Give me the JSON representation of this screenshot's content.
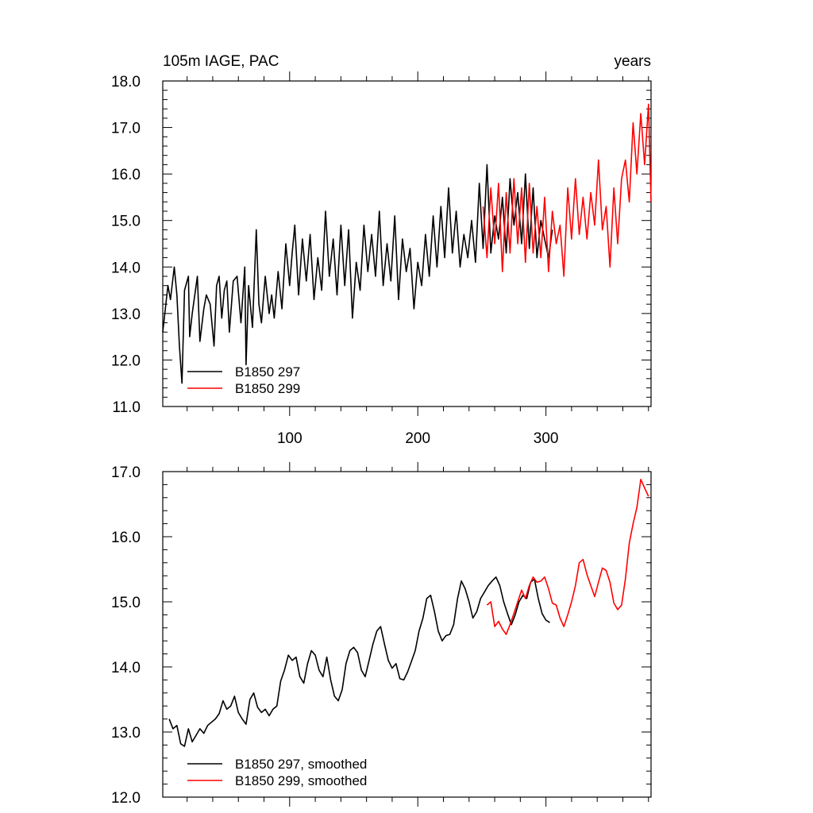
{
  "chart_data": [
    {
      "type": "line",
      "title_left": "105m IAGE, PAC",
      "title_right": "years",
      "xlabel": "",
      "ylabel": "",
      "xlim": [
        1,
        382
      ],
      "ylim": [
        11.0,
        18.0
      ],
      "x_ticks": [
        100,
        200,
        300
      ],
      "x_tick_labels": [
        "100",
        "200",
        "300"
      ],
      "y_ticks": [
        11.0,
        12.0,
        13.0,
        14.0,
        15.0,
        16.0,
        17.0,
        18.0
      ],
      "y_tick_labels": [
        "11.0",
        "12.0",
        "13.0",
        "14.0",
        "15.0",
        "16.0",
        "17.0",
        "18.0"
      ],
      "legend_position": "bottom-left",
      "series": [
        {
          "name": "B1850 297",
          "color": "#000000",
          "x": [
            1,
            5,
            7,
            10,
            12,
            14,
            16,
            18,
            21,
            22,
            24,
            28,
            30,
            33,
            35,
            38,
            41,
            43,
            45,
            47,
            49,
            51,
            53,
            56,
            59,
            62,
            65,
            66,
            68,
            71,
            74,
            76,
            78,
            81,
            84,
            86,
            88,
            91,
            94,
            97,
            100,
            102,
            104,
            107,
            110,
            113,
            116,
            119,
            122,
            125,
            128,
            131,
            134,
            137,
            140,
            143,
            146,
            149,
            152,
            155,
            158,
            161,
            164,
            167,
            170,
            173,
            176,
            179,
            182,
            185,
            188,
            191,
            194,
            197,
            200,
            203,
            206,
            209,
            212,
            215,
            218,
            221,
            224,
            227,
            230,
            233,
            236,
            239,
            242,
            245,
            248,
            251,
            254,
            257,
            260,
            263,
            266,
            269,
            272,
            275,
            278,
            281,
            284,
            287,
            290,
            293,
            296,
            299,
            302,
            305
          ],
          "y": [
            12.6,
            13.6,
            13.3,
            14.0,
            13.4,
            12.3,
            11.5,
            13.5,
            13.8,
            12.5,
            13.0,
            13.8,
            12.4,
            13.1,
            13.4,
            13.2,
            12.3,
            13.6,
            13.8,
            12.9,
            13.5,
            13.7,
            12.6,
            13.7,
            13.8,
            12.8,
            14.0,
            11.9,
            13.6,
            12.7,
            14.8,
            13.2,
            12.8,
            13.8,
            13.0,
            13.4,
            12.9,
            13.9,
            13.1,
            14.5,
            13.6,
            14.3,
            14.9,
            13.4,
            14.6,
            13.7,
            14.7,
            13.3,
            14.2,
            13.5,
            15.2,
            13.8,
            14.6,
            13.4,
            14.9,
            13.6,
            14.8,
            12.9,
            14.1,
            13.5,
            14.9,
            13.9,
            14.7,
            13.8,
            15.2,
            13.6,
            14.5,
            13.7,
            15.1,
            13.3,
            14.6,
            13.9,
            14.4,
            13.1,
            14.1,
            13.6,
            14.7,
            13.8,
            15.1,
            14.0,
            15.3,
            14.2,
            15.7,
            14.3,
            15.2,
            14.0,
            14.7,
            14.2,
            15.0,
            14.1,
            15.8,
            14.4,
            16.2,
            14.3,
            15.1,
            14.6,
            15.5,
            14.3,
            15.9,
            14.9,
            15.6,
            14.5,
            16.0,
            14.4,
            15.7,
            14.2,
            15.0,
            14.6,
            14.2,
            14.8
          ],
          "note": "approximate visual reading of a noisy annual series"
        },
        {
          "name": "B1850 299",
          "color": "#ff0000",
          "x": [
            251,
            254,
            257,
            260,
            263,
            266,
            269,
            272,
            275,
            278,
            281,
            284,
            287,
            290,
            293,
            296,
            299,
            302,
            305,
            308,
            311,
            314,
            317,
            320,
            323,
            326,
            329,
            332,
            335,
            338,
            341,
            344,
            347,
            350,
            353,
            356,
            359,
            362,
            365,
            368,
            371,
            374,
            377,
            380,
            382
          ],
          "y": [
            15.3,
            14.2,
            15.7,
            14.5,
            15.8,
            13.9,
            15.6,
            14.3,
            15.9,
            14.5,
            15.7,
            14.1,
            15.8,
            14.3,
            15.3,
            14.2,
            15.5,
            13.9,
            15.2,
            14.5,
            14.9,
            13.8,
            15.7,
            14.6,
            15.9,
            14.7,
            15.5,
            14.6,
            15.6,
            14.9,
            16.3,
            14.8,
            15.3,
            14.0,
            15.7,
            14.5,
            15.9,
            16.3,
            15.4,
            17.1,
            16.0,
            17.3,
            16.2,
            17.5,
            15.4
          ],
          "note": "approximate visual reading of a noisy annual series"
        }
      ]
    },
    {
      "type": "line",
      "title_left": "",
      "title_right": "",
      "xlabel": "",
      "ylabel": "",
      "xlim": [
        1,
        382
      ],
      "ylim": [
        12.0,
        17.0
      ],
      "x_ticks": [
        100,
        200,
        300
      ],
      "x_tick_labels": [],
      "y_ticks": [
        12.0,
        13.0,
        14.0,
        15.0,
        16.0,
        17.0
      ],
      "y_tick_labels": [
        "12.0",
        "13.0",
        "14.0",
        "15.0",
        "16.0",
        "17.0"
      ],
      "legend_position": "bottom-left",
      "series": [
        {
          "name": "B1850 297, smoothed",
          "color": "#000000",
          "x": [
            6,
            9,
            12,
            15,
            18,
            21,
            24,
            27,
            30,
            33,
            36,
            39,
            42,
            45,
            48,
            51,
            54,
            57,
            60,
            63,
            66,
            69,
            72,
            75,
            78,
            81,
            84,
            87,
            90,
            93,
            96,
            99,
            102,
            105,
            108,
            111,
            114,
            117,
            120,
            123,
            126,
            129,
            132,
            135,
            138,
            141,
            144,
            147,
            150,
            153,
            156,
            159,
            162,
            165,
            168,
            171,
            174,
            177,
            180,
            183,
            186,
            189,
            192,
            195,
            198,
            201,
            204,
            207,
            210,
            213,
            216,
            219,
            222,
            225,
            228,
            231,
            234,
            237,
            240,
            243,
            246,
            249,
            252,
            255,
            258,
            261,
            264,
            267,
            270,
            273,
            276,
            279,
            282,
            285,
            288,
            291,
            294,
            297,
            300,
            303
          ],
          "y": [
            13.2,
            13.05,
            13.1,
            12.82,
            12.78,
            13.05,
            12.85,
            12.95,
            13.05,
            12.98,
            13.1,
            13.15,
            13.2,
            13.28,
            13.48,
            13.35,
            13.4,
            13.55,
            13.3,
            13.2,
            13.12,
            13.5,
            13.6,
            13.38,
            13.3,
            13.35,
            13.25,
            13.35,
            13.4,
            13.78,
            13.95,
            14.18,
            14.1,
            14.15,
            13.85,
            13.75,
            14.05,
            14.25,
            14.18,
            13.95,
            13.85,
            14.15,
            13.8,
            13.55,
            13.48,
            13.65,
            14.05,
            14.25,
            14.3,
            14.22,
            13.95,
            13.85,
            14.1,
            14.35,
            14.55,
            14.62,
            14.35,
            14.1,
            13.98,
            14.05,
            13.82,
            13.8,
            13.92,
            14.08,
            14.25,
            14.55,
            14.75,
            15.05,
            15.1,
            14.85,
            14.55,
            14.4,
            14.48,
            14.5,
            14.65,
            15.05,
            15.32,
            15.2,
            15.0,
            14.75,
            14.85,
            15.05,
            15.15,
            15.25,
            15.32,
            15.38,
            15.25,
            15.0,
            14.82,
            14.65,
            14.8,
            15.0,
            15.1,
            15.05,
            15.3,
            15.35,
            15.05,
            14.82,
            14.72,
            14.68
          ],
          "note": "approximate visual reading"
        },
        {
          "name": "B1850 299, smoothed",
          "color": "#ff0000",
          "x": [
            254,
            257,
            260,
            263,
            266,
            269,
            272,
            275,
            278,
            281,
            284,
            287,
            290,
            293,
            296,
            299,
            302,
            305,
            308,
            311,
            314,
            317,
            320,
            323,
            326,
            329,
            332,
            335,
            338,
            341,
            344,
            347,
            350,
            353,
            356,
            359,
            362,
            365,
            368,
            371,
            374,
            377,
            380
          ],
          "y": [
            14.95,
            15.0,
            14.62,
            14.7,
            14.58,
            14.5,
            14.65,
            14.82,
            15.0,
            15.18,
            15.05,
            15.25,
            15.38,
            15.3,
            15.32,
            15.38,
            15.2,
            14.98,
            14.95,
            14.75,
            14.62,
            14.8,
            15.0,
            15.25,
            15.6,
            15.65,
            15.42,
            15.25,
            15.08,
            15.3,
            15.52,
            15.48,
            15.3,
            14.98,
            14.88,
            14.95,
            15.35,
            15.9,
            16.2,
            16.45,
            16.88,
            16.75,
            16.62
          ],
          "note": "approximate visual reading"
        }
      ]
    }
  ]
}
